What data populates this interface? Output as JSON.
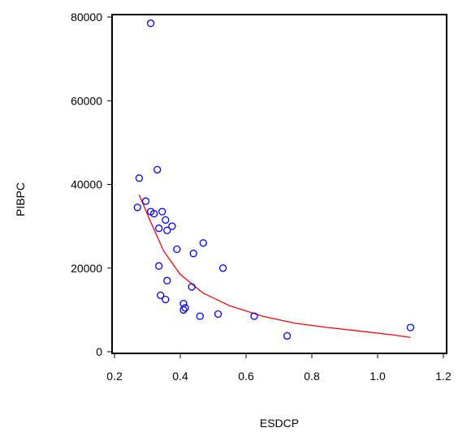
{
  "chart_data": {
    "type": "scatter",
    "xlabel": "ESDCP",
    "ylabel": "PIBPC",
    "xlim": [
      0.2,
      1.2
    ],
    "ylim": [
      0,
      80000
    ],
    "xticks": [
      "0.2",
      "0.4",
      "0.6",
      "0.8",
      "1.0",
      "1.2"
    ],
    "yticks": [
      "0",
      "20000",
      "40000",
      "60000",
      "80000"
    ],
    "grid": false,
    "series": [
      {
        "type": "scatter",
        "marker": "open-circle",
        "color": "#0000ff",
        "points": [
          [
            0.31,
            78500
          ],
          [
            0.275,
            41500
          ],
          [
            0.33,
            43500
          ],
          [
            0.27,
            34500
          ],
          [
            0.295,
            36000
          ],
          [
            0.31,
            33500
          ],
          [
            0.32,
            33000
          ],
          [
            0.345,
            33500
          ],
          [
            0.355,
            31500
          ],
          [
            0.335,
            29500
          ],
          [
            0.375,
            30000
          ],
          [
            0.36,
            29000
          ],
          [
            0.47,
            26000
          ],
          [
            0.39,
            24500
          ],
          [
            0.44,
            23500
          ],
          [
            0.53,
            20000
          ],
          [
            0.335,
            20500
          ],
          [
            0.36,
            17000
          ],
          [
            0.435,
            15500
          ],
          [
            0.34,
            13500
          ],
          [
            0.355,
            12500
          ],
          [
            0.41,
            11500
          ],
          [
            0.41,
            10000
          ],
          [
            0.415,
            10500
          ],
          [
            0.46,
            8500
          ],
          [
            0.515,
            9000
          ],
          [
            0.625,
            8500
          ],
          [
            0.725,
            3800
          ],
          [
            1.1,
            5800
          ]
        ]
      },
      {
        "type": "line",
        "color": "#ff0000",
        "points": [
          [
            0.275,
            37500
          ],
          [
            0.31,
            31000
          ],
          [
            0.35,
            24000
          ],
          [
            0.4,
            18500
          ],
          [
            0.47,
            14000
          ],
          [
            0.55,
            11000
          ],
          [
            0.65,
            8500
          ],
          [
            0.75,
            6800
          ],
          [
            0.85,
            5800
          ],
          [
            0.95,
            4900
          ],
          [
            1.05,
            4000
          ],
          [
            1.1,
            3400
          ]
        ]
      }
    ]
  }
}
